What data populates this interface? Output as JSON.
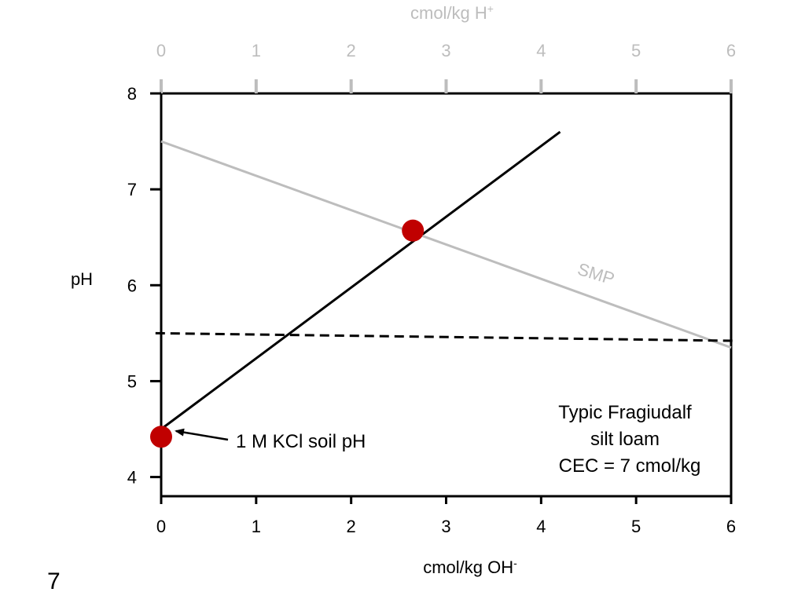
{
  "slide_number": "7",
  "colors": {
    "primary": "#000000",
    "secondary": "#bdbdbd",
    "marker": "#c00000"
  },
  "chart_data": {
    "type": "line",
    "x_bottom": {
      "label": "cmol/kg OH",
      "label_superscript": "-",
      "range": [
        0,
        6
      ],
      "ticks": [
        "0",
        "1",
        "2",
        "3",
        "4",
        "5",
        "6"
      ]
    },
    "x_top": {
      "label": "cmol/kg H",
      "label_superscript": "+",
      "range": [
        0,
        6
      ],
      "ticks": [
        "0",
        "1",
        "2",
        "3",
        "4",
        "5",
        "6"
      ]
    },
    "y": {
      "label": "pH",
      "range": [
        3.8,
        8.0
      ],
      "ticks": [
        "4",
        "5",
        "6",
        "7",
        "8"
      ]
    },
    "grid": false,
    "series": [
      {
        "axis": "bottom",
        "style": "solid-black",
        "points": [
          [
            0,
            4.5
          ],
          [
            4.2,
            7.6
          ]
        ]
      },
      {
        "name": "SMP",
        "axis": "top",
        "style": "solid-gray",
        "points": [
          [
            0,
            7.5
          ],
          [
            6,
            5.35
          ]
        ]
      },
      {
        "axis": "bottom",
        "style": "dashed-black",
        "points": [
          [
            -0.06,
            5.5
          ],
          [
            6.06,
            5.42
          ]
        ]
      }
    ],
    "markers": [
      {
        "x": 0,
        "y": 4.42,
        "color": "#c00000"
      },
      {
        "x": 2.65,
        "y": 6.57,
        "color": "#c00000"
      }
    ],
    "annotations": {
      "kcl_label": "1 M KCl soil pH",
      "soil_note": [
        "Typic Fragiudalf",
        "silt loam",
        "CEC = 7 cmol/kg"
      ]
    }
  }
}
